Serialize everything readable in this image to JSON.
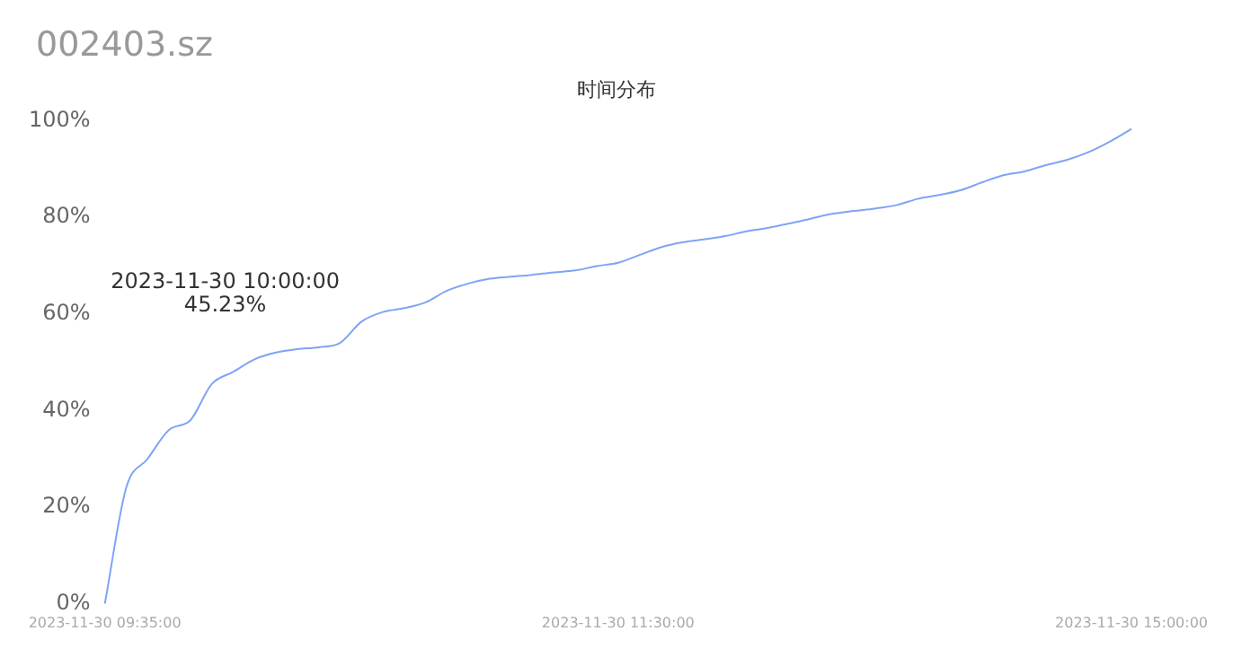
{
  "chart_data": {
    "type": "line",
    "title": "002403.sz",
    "subtitle": "时间分布",
    "categories": [
      "2023-11-30 09:35:00",
      null,
      null,
      null,
      null,
      null,
      null,
      null,
      null,
      null,
      null,
      null,
      null,
      null,
      null,
      null,
      null,
      null,
      null,
      null,
      null,
      null,
      null,
      null,
      "2023-11-30 11:30:00",
      null,
      null,
      null,
      null,
      null,
      null,
      null,
      null,
      null,
      null,
      null,
      null,
      null,
      null,
      null,
      null,
      null,
      null,
      null,
      null,
      null,
      null,
      null,
      "2023-11-30 15:00:00"
    ],
    "series": [
      {
        "color": "#7ea4f5",
        "values": [
          0,
          24,
          30,
          36,
          38,
          45.5,
          48,
          50.6,
          52,
          52.7,
          53.1,
          54,
          58.4,
          60.4,
          61.2,
          62.4,
          64.8,
          66.3,
          67.3,
          67.7,
          68.1,
          68.6,
          69,
          69.9,
          70.6,
          72.2,
          73.8,
          74.8,
          75.4,
          76.1,
          77.1,
          77.8,
          78.7,
          79.7,
          80.7,
          81.3,
          81.8,
          82.5,
          83.8,
          84.6,
          85.6,
          87.2,
          88.7,
          89.5,
          90.8,
          91.9,
          93.5,
          95.7,
          98.3
        ]
      }
    ],
    "ylim": [
      0,
      100
    ],
    "yticks": [
      {
        "value": 0,
        "label": "0%"
      },
      {
        "value": 20,
        "label": "20%"
      },
      {
        "value": 40,
        "label": "40%"
      },
      {
        "value": 60,
        "label": "60%"
      },
      {
        "value": 80,
        "label": "80%"
      },
      {
        "value": 100,
        "label": "100%"
      }
    ],
    "grid": false,
    "legend": false,
    "marker": "none",
    "line_style": "solid",
    "annotations": [
      "2023-11-30 10:00:00",
      "45.23%"
    ]
  }
}
